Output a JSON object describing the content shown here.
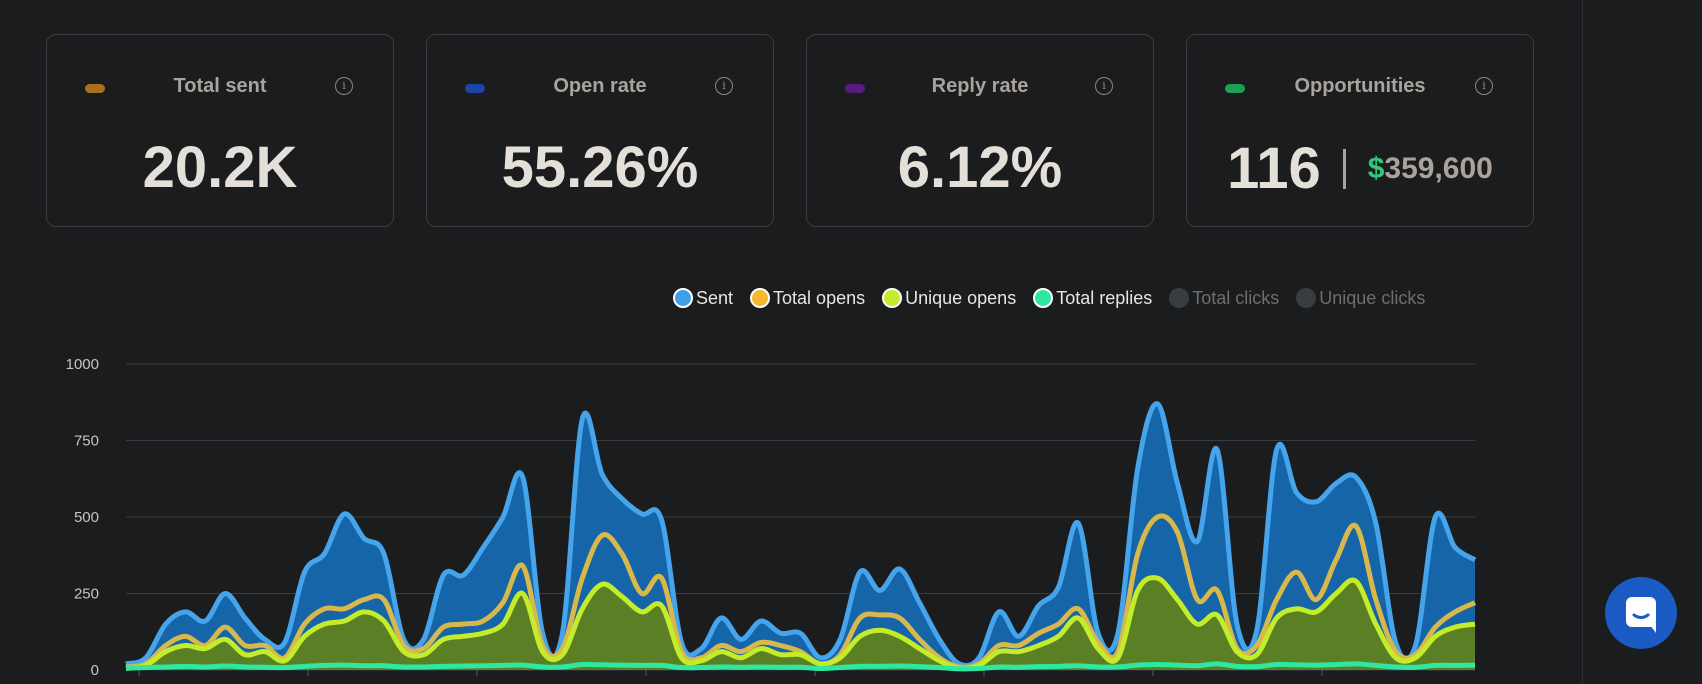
{
  "stats": {
    "total_sent": {
      "title": "Total sent",
      "value": "20.2K",
      "color": "#a7701e"
    },
    "open_rate": {
      "title": "Open rate",
      "value": "55.26%",
      "color": "#1d44a8"
    },
    "reply_rate": {
      "title": "Reply rate",
      "value": "6.12%",
      "color": "#5b1a82"
    },
    "opportunities": {
      "title": "Opportunities",
      "count": "116",
      "currency": "$",
      "amount": "359,600",
      "color": "#1f9f52"
    }
  },
  "info_icon_glyph": "i",
  "legend": [
    {
      "label": "Sent",
      "color": "#3e9ee8",
      "active": true
    },
    {
      "label": "Total opens",
      "color": "#f5b82e",
      "active": true
    },
    {
      "label": "Unique opens",
      "color": "#c3ec2b",
      "active": true
    },
    {
      "label": "Total replies",
      "color": "#2ee8a0",
      "active": true
    },
    {
      "label": "Total clicks",
      "color": "#3a3d3f",
      "active": false
    },
    {
      "label": "Unique clicks",
      "color": "#3a3d3f",
      "active": false
    }
  ],
  "chart_data": {
    "type": "area",
    "ylim": [
      0,
      1000
    ],
    "yticks": [
      "0",
      "250",
      "500",
      "750",
      "1000"
    ],
    "series": [
      {
        "name": "Sent",
        "stroke": "#45a4ec",
        "fill": "#1565a8",
        "values": [
          20,
          40,
          150,
          190,
          160,
          250,
          170,
          100,
          90,
          320,
          380,
          510,
          430,
          380,
          100,
          100,
          310,
          310,
          400,
          500,
          630,
          120,
          120,
          820,
          640,
          560,
          510,
          490,
          90,
          70,
          170,
          100,
          160,
          120,
          120,
          40,
          100,
          320,
          260,
          330,
          220,
          100,
          20,
          40,
          190,
          110,
          210,
          270,
          480,
          120,
          120,
          660,
          870,
          610,
          420,
          720,
          150,
          130,
          720,
          580,
          550,
          610,
          630,
          480,
          90,
          80,
          500,
          400,
          360
        ]
      },
      {
        "name": "Total opens",
        "stroke": "#d8b84a",
        "fill": "none",
        "values": [
          10,
          20,
          80,
          110,
          80,
          140,
          80,
          80,
          40,
          150,
          200,
          200,
          230,
          230,
          80,
          70,
          140,
          150,
          160,
          220,
          340,
          80,
          70,
          300,
          440,
          380,
          250,
          300,
          60,
          40,
          80,
          60,
          90,
          80,
          60,
          20,
          50,
          170,
          180,
          170,
          100,
          40,
          10,
          20,
          80,
          80,
          120,
          150,
          200,
          90,
          60,
          380,
          500,
          450,
          230,
          260,
          70,
          80,
          230,
          320,
          230,
          360,
          470,
          230,
          60,
          50,
          140,
          190,
          220
        ]
      },
      {
        "name": "Unique opens",
        "stroke": "#c3ec2b",
        "fill": "#5b7f24",
        "values": [
          5,
          15,
          60,
          80,
          70,
          100,
          50,
          60,
          30,
          110,
          150,
          160,
          190,
          160,
          60,
          50,
          100,
          110,
          120,
          150,
          250,
          60,
          50,
          200,
          280,
          240,
          190,
          210,
          40,
          30,
          60,
          40,
          70,
          50,
          50,
          20,
          40,
          110,
          130,
          110,
          70,
          30,
          5,
          15,
          60,
          60,
          80,
          110,
          170,
          70,
          40,
          260,
          300,
          230,
          150,
          180,
          60,
          50,
          170,
          200,
          190,
          250,
          290,
          150,
          40,
          40,
          110,
          140,
          150
        ]
      },
      {
        "name": "Total replies",
        "stroke": "#2ee8a0",
        "fill": "none",
        "values": [
          6,
          8,
          10,
          12,
          10,
          13,
          10,
          9,
          8,
          12,
          15,
          16,
          14,
          14,
          10,
          10,
          12,
          13,
          14,
          15,
          16,
          10,
          10,
          18,
          17,
          16,
          15,
          15,
          8,
          8,
          10,
          9,
          10,
          9,
          9,
          5,
          8,
          12,
          12,
          13,
          11,
          8,
          4,
          5,
          10,
          9,
          11,
          12,
          14,
          10,
          10,
          16,
          18,
          16,
          14,
          20,
          12,
          11,
          18,
          17,
          16,
          18,
          20,
          15,
          10,
          9,
          15,
          15,
          16
        ]
      }
    ]
  }
}
